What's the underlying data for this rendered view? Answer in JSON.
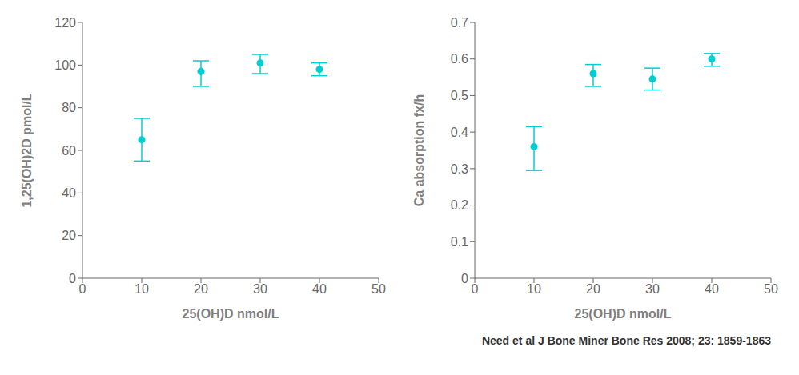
{
  "chart_data": [
    {
      "type": "scatter",
      "x": [
        10,
        20,
        30,
        40
      ],
      "values": [
        65,
        97,
        101,
        98
      ],
      "yerr_low": [
        10,
        7,
        5,
        3
      ],
      "yerr_high": [
        10,
        5,
        4,
        3
      ],
      "xlabel": "25(OH)D nmol/L",
      "ylabel": "1,25(OH)2D pmol/L",
      "xlim": [
        0,
        50
      ],
      "ylim": [
        0,
        120
      ],
      "xticks": [
        0,
        10,
        20,
        30,
        40,
        50
      ],
      "yticks": [
        0,
        20,
        40,
        60,
        80,
        100,
        120
      ],
      "color": "#00CED1",
      "grid": false
    },
    {
      "type": "scatter",
      "x": [
        10,
        20,
        30,
        40
      ],
      "values": [
        0.36,
        0.56,
        0.545,
        0.6
      ],
      "yerr_low": [
        0.065,
        0.035,
        0.03,
        0.02
      ],
      "yerr_high": [
        0.055,
        0.025,
        0.03,
        0.015
      ],
      "xlabel": "25(OH)D nmol/L",
      "ylabel": "Ca absorption fx/h",
      "xlim": [
        0,
        50
      ],
      "ylim": [
        0,
        0.7
      ],
      "xticks": [
        0,
        10,
        20,
        30,
        40,
        50
      ],
      "yticks": [
        0,
        0.1,
        0.2,
        0.3,
        0.4,
        0.5,
        0.6,
        0.7
      ],
      "color": "#00CED1",
      "grid": false,
      "annotation": "Need et al J Bone Miner Bone Res 2008; 23: 1859-1863"
    }
  ]
}
